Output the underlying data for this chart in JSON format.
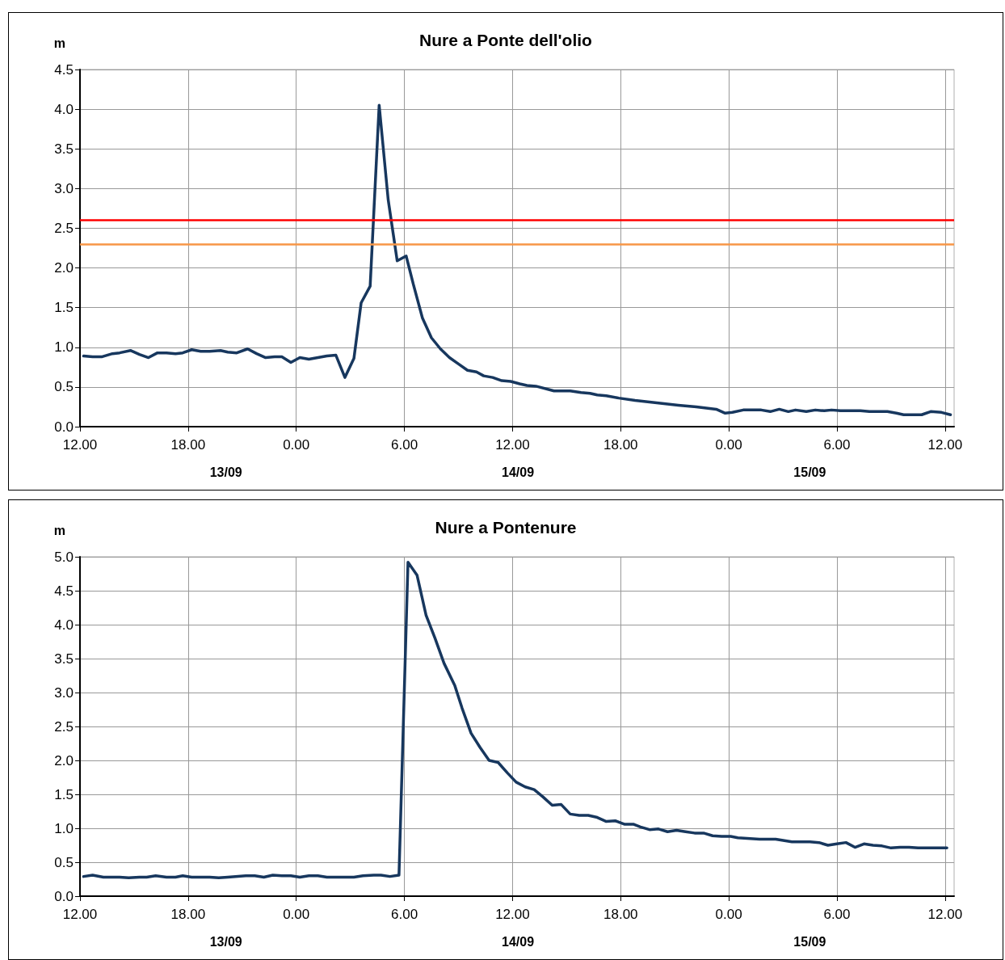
{
  "chart_data": [
    {
      "type": "line",
      "title": "Nure a Ponte dell'olio",
      "ylabel": "m",
      "grid": true,
      "marker": "none",
      "line_style": "solid",
      "xlim": [
        "--09-13T12:00",
        "--09-15T12:30"
      ],
      "xticks": [
        {
          "value": "--09-13T12:00",
          "label": "12.00"
        },
        {
          "value": "--09-13T18:00",
          "label": "18.00"
        },
        {
          "value": "--09-14T00:00",
          "label": "0.00"
        },
        {
          "value": "--09-14T06:00",
          "label": "6.00"
        },
        {
          "value": "--09-14T12:00",
          "label": "12.00"
        },
        {
          "value": "--09-14T18:00",
          "label": "18.00"
        },
        {
          "value": "--09-15T00:00",
          "label": "0.00"
        },
        {
          "value": "--09-15T06:00",
          "label": "6.00"
        },
        {
          "value": "--09-15T12:00",
          "label": "12.00"
        }
      ],
      "ylim": [
        0,
        4.5
      ],
      "yticks": [
        {
          "value": 0,
          "label": "0.0"
        },
        {
          "value": 0.5,
          "label": "0.5"
        },
        {
          "value": 1,
          "label": "1.0"
        },
        {
          "value": 1.5,
          "label": "1.5"
        },
        {
          "value": 2,
          "label": "2.0"
        },
        {
          "value": 2.5,
          "label": "2.5"
        },
        {
          "value": 3,
          "label": "3.0"
        },
        {
          "value": 3.5,
          "label": "3.5"
        },
        {
          "value": 4,
          "label": "4.0"
        },
        {
          "value": 4.5,
          "label": "4.5"
        }
      ],
      "annotations": [
        "13/09",
        "14/09",
        "15/09"
      ],
      "ref_lines": [
        {
          "axis": "y",
          "value": 2.6,
          "label": null,
          "color": "#ff0000"
        },
        {
          "axis": "y",
          "value": 2.3,
          "label": null,
          "color": "#f79646"
        }
      ],
      "series": [
        {
          "color": "#17375e",
          "x": [
            "--09-13T12:12",
            "--09-13T12:42",
            "--09-13T13:12",
            "--09-13T13:48",
            "--09-13T14:12",
            "--09-13T14:48",
            "--09-13T15:18",
            "--09-13T15:48",
            "--09-13T16:18",
            "--09-13T16:48",
            "--09-13T17:18",
            "--09-13T17:42",
            "--09-13T18:12",
            "--09-13T18:42",
            "--09-13T19:12",
            "--09-13T19:48",
            "--09-13T20:12",
            "--09-13T20:42",
            "--09-13T21:18",
            "--09-13T21:48",
            "--09-13T22:18",
            "--09-13T22:48",
            "--09-13T23:12",
            "--09-13T23:42",
            "--09-14T00:12",
            "--09-14T00:42",
            "--09-14T01:12",
            "--09-14T01:42",
            "--09-14T02:12",
            "--09-14T02:42",
            "--09-14T03:12",
            "--09-14T03:36",
            "--09-14T04:06",
            "--09-14T04:36",
            "--09-14T05:06",
            "--09-14T05:36",
            "--09-14T06:06",
            "--09-14T06:30",
            "--09-14T07:00",
            "--09-14T07:30",
            "--09-14T08:00",
            "--09-14T08:30",
            "--09-14T09:00",
            "--09-14T09:30",
            "--09-14T10:00",
            "--09-14T10:24",
            "--09-14T10:54",
            "--09-14T11:24",
            "--09-14T11:54",
            "--09-14T12:24",
            "--09-14T12:48",
            "--09-14T13:18",
            "--09-14T14:18",
            "--09-14T15:12",
            "--09-14T15:48",
            "--09-14T16:18",
            "--09-14T16:42",
            "--09-14T17:12",
            "--09-14T17:54",
            "--09-14T18:48",
            "--09-14T19:36",
            "--09-14T20:24",
            "--09-14T21:12",
            "--09-14T22:12",
            "--09-14T23:18",
            "--09-14T23:48",
            "--09-15T00:12",
            "--09-15T00:48",
            "--09-15T01:48",
            "--09-15T02:18",
            "--09-15T02:48",
            "--09-15T03:18",
            "--09-15T03:42",
            "--09-15T04:18",
            "--09-15T04:48",
            "--09-15T05:18",
            "--09-15T05:42",
            "--09-15T06:12",
            "--09-15T07:18",
            "--09-15T07:48",
            "--09-15T08:48",
            "--09-15T09:18",
            "--09-15T09:42",
            "--09-15T10:42",
            "--09-15T11:12",
            "--09-15T11:48",
            "--09-15T12:18"
          ],
          "values": [
            0.89,
            0.88,
            0.88,
            0.92,
            0.93,
            0.96,
            0.91,
            0.87,
            0.93,
            0.93,
            0.92,
            0.93,
            0.97,
            0.95,
            0.95,
            0.96,
            0.94,
            0.93,
            0.98,
            0.92,
            0.87,
            0.88,
            0.88,
            0.81,
            0.87,
            0.85,
            0.87,
            0.89,
            0.9,
            0.62,
            0.86,
            1.56,
            1.77,
            4.05,
            2.86,
            2.09,
            2.15,
            1.79,
            1.37,
            1.12,
            0.98,
            0.87,
            0.79,
            0.71,
            0.69,
            0.64,
            0.62,
            0.58,
            0.57,
            0.54,
            0.52,
            0.51,
            0.45,
            0.45,
            0.43,
            0.42,
            0.4,
            0.39,
            0.36,
            0.33,
            0.31,
            0.29,
            0.27,
            0.25,
            0.22,
            0.17,
            0.18,
            0.21,
            0.21,
            0.19,
            0.22,
            0.19,
            0.21,
            0.19,
            0.21,
            0.2,
            0.21,
            0.2,
            0.2,
            0.19,
            0.19,
            0.17,
            0.15,
            0.15,
            0.19,
            0.18,
            0.15
          ]
        }
      ]
    },
    {
      "type": "line",
      "title": "Nure a Pontenure",
      "ylabel": "m",
      "grid": true,
      "marker": "none",
      "line_style": "solid",
      "xlim": [
        "--09-13T12:00",
        "--09-15T12:30"
      ],
      "xticks": [
        {
          "value": "--09-13T12:00",
          "label": "12.00"
        },
        {
          "value": "--09-13T18:00",
          "label": "18.00"
        },
        {
          "value": "--09-14T00:00",
          "label": "0.00"
        },
        {
          "value": "--09-14T06:00",
          "label": "6.00"
        },
        {
          "value": "--09-14T12:00",
          "label": "12.00"
        },
        {
          "value": "--09-14T18:00",
          "label": "18.00"
        },
        {
          "value": "--09-15T00:00",
          "label": "0.00"
        },
        {
          "value": "--09-15T06:00",
          "label": "6.00"
        },
        {
          "value": "--09-15T12:00",
          "label": "12.00"
        }
      ],
      "ylim": [
        0,
        5
      ],
      "yticks": [
        {
          "value": 0,
          "label": "0.0"
        },
        {
          "value": 0.5,
          "label": "0.5"
        },
        {
          "value": 1,
          "label": "1.0"
        },
        {
          "value": 1.5,
          "label": "1.5"
        },
        {
          "value": 2,
          "label": "2.0"
        },
        {
          "value": 2.5,
          "label": "2.5"
        },
        {
          "value": 3,
          "label": "3.0"
        },
        {
          "value": 3.5,
          "label": "3.5"
        },
        {
          "value": 4,
          "label": "4.0"
        },
        {
          "value": 4.5,
          "label": "4.5"
        },
        {
          "value": 5,
          "label": "5.0"
        }
      ],
      "annotations": [
        "13/09",
        "14/09",
        "15/09"
      ],
      "series": [
        {
          "color": "#17375e",
          "x": [
            "--09-13T12:12",
            "--09-13T12:42",
            "--09-13T13:18",
            "--09-13T14:12",
            "--09-13T14:42",
            "--09-13T15:18",
            "--09-13T15:42",
            "--09-13T16:12",
            "--09-13T16:48",
            "--09-13T17:18",
            "--09-13T17:42",
            "--09-13T18:12",
            "--09-13T19:12",
            "--09-13T19:42",
            "--09-13T20:12",
            "--09-13T21:12",
            "--09-13T21:42",
            "--09-13T22:12",
            "--09-13T22:42",
            "--09-13T23:12",
            "--09-13T23:42",
            "--09-14T00:12",
            "--09-14T00:42",
            "--09-14T01:12",
            "--09-14T01:42",
            "--09-14T03:12",
            "--09-14T03:42",
            "--09-14T04:18",
            "--09-14T04:42",
            "--09-14T05:12",
            "--09-14T05:42",
            "--09-14T06:12",
            "--09-14T06:42",
            "--09-14T07:12",
            "--09-14T07:42",
            "--09-14T08:12",
            "--09-14T08:48",
            "--09-14T09:12",
            "--09-14T09:42",
            "--09-14T10:12",
            "--09-14T10:42",
            "--09-14T11:12",
            "--09-14T11:42",
            "--09-14T12:12",
            "--09-14T12:42",
            "--09-14T13:12",
            "--09-14T13:42",
            "--09-14T14:12",
            "--09-14T14:42",
            "--09-14T15:12",
            "--09-14T15:42",
            "--09-14T16:12",
            "--09-14T16:42",
            "--09-14T17:12",
            "--09-14T17:42",
            "--09-14T18:12",
            "--09-14T18:42",
            "--09-14T19:06",
            "--09-14T19:36",
            "--09-14T20:06",
            "--09-14T20:36",
            "--09-14T21:06",
            "--09-14T21:36",
            "--09-14T22:06",
            "--09-14T22:36",
            "--09-14T23:06",
            "--09-14T23:36",
            "--09-15T00:06",
            "--09-15T00:30",
            "--09-15T01:42",
            "--09-15T02:36",
            "--09-15T03:30",
            "--09-15T04:30",
            "--09-15T05:00",
            "--09-15T05:30",
            "--09-15T06:00",
            "--09-15T06:30",
            "--09-15T07:00",
            "--09-15T07:30",
            "--09-15T08:00",
            "--09-15T08:30",
            "--09-15T09:00",
            "--09-15T09:30",
            "--09-15T10:00",
            "--09-15T10:30",
            "--09-15T12:06"
          ],
          "values": [
            0.29,
            0.31,
            0.28,
            0.28,
            0.27,
            0.28,
            0.28,
            0.3,
            0.28,
            0.28,
            0.3,
            0.28,
            0.28,
            0.27,
            0.28,
            0.3,
            0.3,
            0.28,
            0.31,
            0.3,
            0.3,
            0.28,
            0.3,
            0.3,
            0.28,
            0.28,
            0.3,
            0.31,
            0.31,
            0.29,
            0.31,
            4.92,
            4.73,
            4.14,
            3.8,
            3.43,
            3.1,
            2.77,
            2.4,
            2.19,
            2.0,
            1.97,
            1.82,
            1.68,
            1.61,
            1.57,
            1.46,
            1.34,
            1.35,
            1.21,
            1.19,
            1.19,
            1.16,
            1.1,
            1.11,
            1.06,
            1.06,
            1.02,
            0.98,
            0.99,
            0.95,
            0.97,
            0.95,
            0.93,
            0.93,
            0.89,
            0.88,
            0.88,
            0.86,
            0.84,
            0.84,
            0.8,
            0.8,
            0.79,
            0.75,
            0.77,
            0.79,
            0.72,
            0.77,
            0.75,
            0.74,
            0.71,
            0.72,
            0.72,
            0.71,
            0.71
          ]
        }
      ]
    }
  ]
}
